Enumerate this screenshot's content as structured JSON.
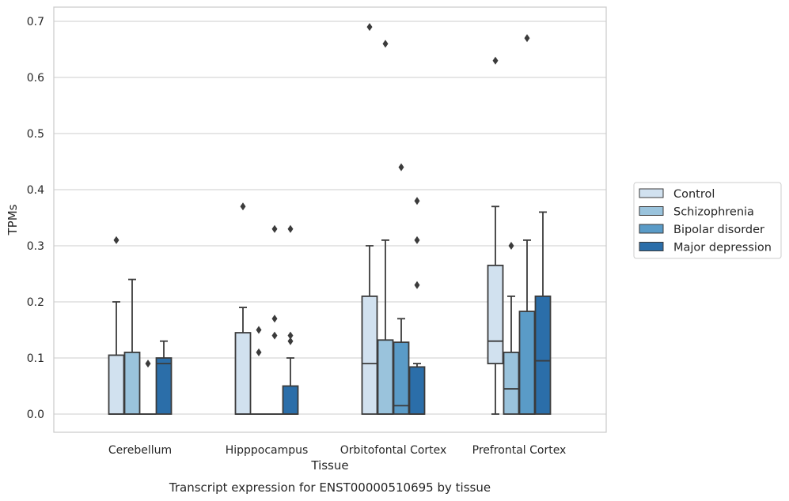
{
  "chart_data": {
    "type": "box",
    "xlabel": "Tissue",
    "ylabel": "TPMs",
    "caption": "Transcript expression for ENST00000510695 by tissue",
    "ylim": [
      -0.035,
      0.725
    ],
    "yticks": [
      0.0,
      0.1,
      0.2,
      0.3,
      0.4,
      0.5,
      0.6,
      0.7
    ],
    "ytick_labels": [
      "0.0",
      "0.1",
      "0.2",
      "0.3",
      "0.4",
      "0.5",
      "0.6",
      "0.7"
    ],
    "grid": "horizontal",
    "legend_position": "right",
    "categories": [
      "Cerebellum",
      "Hipppocampus",
      "Orbitofontal Cortex",
      "Prefrontal Cortex"
    ],
    "series": [
      {
        "name": "Control",
        "color": "#d1e1ef",
        "boxes": [
          {
            "q1": 0.0,
            "median": 0.0,
            "q3": 0.105,
            "whisker_low": 0.0,
            "whisker_high": 0.2,
            "outliers": [
              0.31
            ]
          },
          {
            "q1": 0.0,
            "median": 0.0,
            "q3": 0.145,
            "whisker_low": 0.0,
            "whisker_high": 0.19,
            "outliers": [
              0.37
            ]
          },
          {
            "q1": 0.0,
            "median": 0.09,
            "q3": 0.21,
            "whisker_low": 0.0,
            "whisker_high": 0.3,
            "outliers": [
              0.69
            ]
          },
          {
            "q1": 0.09,
            "median": 0.13,
            "q3": 0.265,
            "whisker_low": 0.0,
            "whisker_high": 0.37,
            "outliers": [
              0.63
            ]
          }
        ]
      },
      {
        "name": "Schizophrenia",
        "color": "#9ac3dc",
        "boxes": [
          {
            "q1": 0.0,
            "median": 0.0,
            "q3": 0.11,
            "whisker_low": 0.0,
            "whisker_high": 0.24,
            "outliers": []
          },
          {
            "q1": 0.0,
            "median": 0.0,
            "q3": 0.0,
            "whisker_low": 0.0,
            "whisker_high": 0.0,
            "outliers": [
              0.11,
              0.15
            ]
          },
          {
            "q1": 0.0,
            "median": 0.0,
            "q3": 0.132,
            "whisker_low": 0.0,
            "whisker_high": 0.31,
            "outliers": [
              0.66
            ]
          },
          {
            "q1": 0.0,
            "median": 0.045,
            "q3": 0.11,
            "whisker_low": 0.0,
            "whisker_high": 0.21,
            "outliers": [
              0.3
            ]
          }
        ]
      },
      {
        "name": "Bipolar disorder",
        "color": "#5a9bc7",
        "boxes": [
          {
            "q1": 0.0,
            "median": 0.0,
            "q3": 0.0,
            "whisker_low": 0.0,
            "whisker_high": 0.0,
            "outliers": [
              0.09
            ]
          },
          {
            "q1": 0.0,
            "median": 0.0,
            "q3": 0.0,
            "whisker_low": 0.0,
            "whisker_high": 0.0,
            "outliers": [
              0.14,
              0.17,
              0.33
            ]
          },
          {
            "q1": 0.0,
            "median": 0.015,
            "q3": 0.128,
            "whisker_low": 0.0,
            "whisker_high": 0.17,
            "outliers": [
              0.44
            ]
          },
          {
            "q1": 0.0,
            "median": 0.0,
            "q3": 0.183,
            "whisker_low": 0.0,
            "whisker_high": 0.31,
            "outliers": [
              0.67
            ]
          }
        ]
      },
      {
        "name": "Major depression",
        "color": "#2b6ea9",
        "boxes": [
          {
            "q1": 0.0,
            "median": 0.09,
            "q3": 0.1,
            "whisker_low": 0.0,
            "whisker_high": 0.13,
            "outliers": []
          },
          {
            "q1": 0.0,
            "median": 0.0,
            "q3": 0.05,
            "whisker_low": 0.0,
            "whisker_high": 0.1,
            "outliers": [
              0.13,
              0.14,
              0.33
            ]
          },
          {
            "q1": 0.0,
            "median": 0.0,
            "q3": 0.084,
            "whisker_low": 0.0,
            "whisker_high": 0.09,
            "outliers": [
              0.23,
              0.31,
              0.38
            ]
          },
          {
            "q1": 0.0,
            "median": 0.095,
            "q3": 0.21,
            "whisker_low": 0.0,
            "whisker_high": 0.36,
            "outliers": []
          }
        ]
      }
    ]
  }
}
